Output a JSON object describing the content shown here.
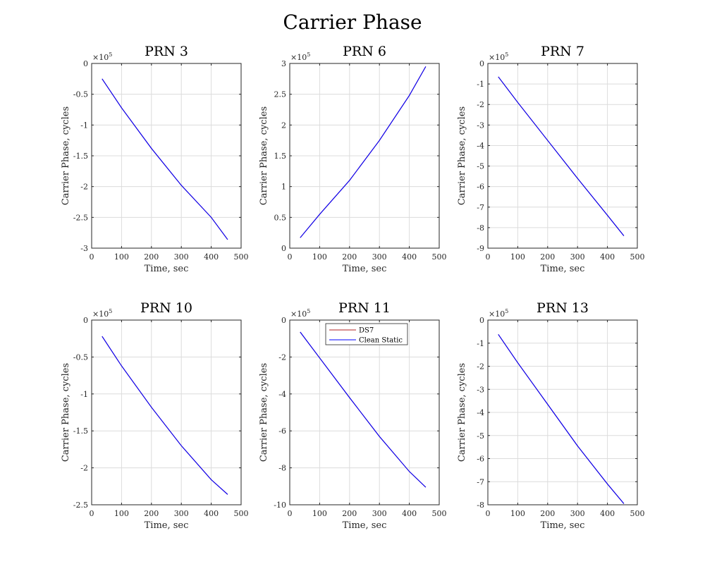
{
  "suptitle": "Carrier Phase",
  "colors": {
    "DS7": "#b22222",
    "Clean Static": "#0000ff",
    "grid": "#dcdcdc",
    "axis": "#262626"
  },
  "chart_data": [
    {
      "type": "line",
      "title": "PRN 3",
      "xlabel": "Time, sec",
      "ylabel": "Carrier Phase, cycles",
      "xlim": [
        0,
        500
      ],
      "xticks": [
        0,
        100,
        200,
        300,
        400,
        500
      ],
      "ylim": [
        -3,
        0
      ],
      "yticks": [
        -3,
        -2.5,
        -2,
        -1.5,
        -1,
        -0.5,
        0
      ],
      "ytick_labels": [
        "-3",
        "-2.5",
        "-2",
        "-1.5",
        "-1",
        "-0.5",
        "0"
      ],
      "y_multiplier": "×10^5",
      "grid": true,
      "series": [
        {
          "name": "DS7",
          "color": "#b22222",
          "x": [
            35,
            100,
            200,
            300,
            400,
            455
          ],
          "y": [
            -0.25,
            -0.72,
            -1.38,
            -1.98,
            -2.5,
            -2.86
          ]
        },
        {
          "name": "Clean Static",
          "color": "#0000ff",
          "x": [
            35,
            100,
            200,
            300,
            400,
            455
          ],
          "y": [
            -0.25,
            -0.72,
            -1.38,
            -1.98,
            -2.5,
            -2.86
          ]
        }
      ]
    },
    {
      "type": "line",
      "title": "PRN 6",
      "xlabel": "Time, sec",
      "ylabel": "Carrier Phase, cycles",
      "xlim": [
        0,
        500
      ],
      "xticks": [
        0,
        100,
        200,
        300,
        400,
        500
      ],
      "ylim": [
        0,
        3
      ],
      "yticks": [
        0,
        0.5,
        1,
        1.5,
        2,
        2.5,
        3
      ],
      "ytick_labels": [
        "0",
        "0.5",
        "1",
        "1.5",
        "2",
        "2.5",
        "3"
      ],
      "y_multiplier": "×10^5",
      "grid": true,
      "series": [
        {
          "name": "DS7",
          "color": "#b22222",
          "x": [
            35,
            100,
            200,
            300,
            400,
            455
          ],
          "y": [
            0.17,
            0.55,
            1.1,
            1.75,
            2.48,
            2.95
          ]
        },
        {
          "name": "Clean Static",
          "color": "#0000ff",
          "x": [
            35,
            100,
            200,
            300,
            400,
            455
          ],
          "y": [
            0.17,
            0.55,
            1.1,
            1.75,
            2.48,
            2.95
          ]
        }
      ]
    },
    {
      "type": "line",
      "title": "PRN 7",
      "xlabel": "Time, sec",
      "ylabel": "Carrier Phase, cycles",
      "xlim": [
        0,
        500
      ],
      "xticks": [
        0,
        100,
        200,
        300,
        400,
        500
      ],
      "ylim": [
        -9,
        0
      ],
      "yticks": [
        -9,
        -8,
        -7,
        -6,
        -5,
        -4,
        -3,
        -2,
        -1,
        0
      ],
      "ytick_labels": [
        "-9",
        "-8",
        "-7",
        "-6",
        "-5",
        "-4",
        "-3",
        "-2",
        "-1",
        "0"
      ],
      "y_multiplier": "×10^5",
      "grid": true,
      "series": [
        {
          "name": "DS7",
          "color": "#b22222",
          "x": [
            35,
            100,
            200,
            300,
            400,
            455
          ],
          "y": [
            -0.65,
            -1.9,
            -3.75,
            -5.6,
            -7.4,
            -8.4
          ]
        },
        {
          "name": "Clean Static",
          "color": "#0000ff",
          "x": [
            35,
            100,
            200,
            300,
            400,
            455
          ],
          "y": [
            -0.65,
            -1.9,
            -3.75,
            -5.6,
            -7.4,
            -8.4
          ]
        }
      ]
    },
    {
      "type": "line",
      "title": "PRN 10",
      "xlabel": "Time, sec",
      "ylabel": "Carrier Phase, cycles",
      "xlim": [
        0,
        500
      ],
      "xticks": [
        0,
        100,
        200,
        300,
        400,
        500
      ],
      "ylim": [
        -2.5,
        0
      ],
      "yticks": [
        -2.5,
        -2,
        -1.5,
        -1,
        -0.5,
        0
      ],
      "ytick_labels": [
        "-2.5",
        "-2",
        "-1.5",
        "-1",
        "-0.5",
        "0"
      ],
      "y_multiplier": "×10^5",
      "grid": true,
      "series": [
        {
          "name": "DS7",
          "color": "#b22222",
          "x": [
            35,
            100,
            200,
            300,
            400,
            455
          ],
          "y": [
            -0.22,
            -0.62,
            -1.18,
            -1.7,
            -2.16,
            -2.36
          ]
        },
        {
          "name": "Clean Static",
          "color": "#0000ff",
          "x": [
            35,
            100,
            200,
            300,
            400,
            455
          ],
          "y": [
            -0.22,
            -0.62,
            -1.18,
            -1.7,
            -2.16,
            -2.36
          ]
        }
      ]
    },
    {
      "type": "line",
      "title": "PRN 11",
      "xlabel": "Time, sec",
      "ylabel": "Carrier Phase, cycles",
      "xlim": [
        0,
        500
      ],
      "xticks": [
        0,
        100,
        200,
        300,
        400,
        500
      ],
      "ylim": [
        -10,
        0
      ],
      "yticks": [
        -10,
        -8,
        -6,
        -4,
        -2,
        0
      ],
      "ytick_labels": [
        "-10",
        "-8",
        "-6",
        "-4",
        "-2",
        "0"
      ],
      "y_multiplier": "×10^5",
      "grid": true,
      "legend": {
        "entries": [
          "DS7",
          "Clean Static"
        ],
        "location": "top-left"
      },
      "series": [
        {
          "name": "DS7",
          "color": "#b22222",
          "x": [
            35,
            100,
            200,
            300,
            400,
            455
          ],
          "y": [
            -0.65,
            -2.05,
            -4.2,
            -6.3,
            -8.2,
            -9.05
          ]
        },
        {
          "name": "Clean Static",
          "color": "#0000ff",
          "x": [
            35,
            100,
            200,
            300,
            400,
            455
          ],
          "y": [
            -0.65,
            -2.05,
            -4.2,
            -6.3,
            -8.2,
            -9.05
          ]
        }
      ]
    },
    {
      "type": "line",
      "title": "PRN 13",
      "xlabel": "Time, sec",
      "ylabel": "Carrier Phase, cycles",
      "xlim": [
        0,
        500
      ],
      "xticks": [
        0,
        100,
        200,
        300,
        400,
        500
      ],
      "ylim": [
        -8,
        0
      ],
      "yticks": [
        -8,
        -7,
        -6,
        -5,
        -4,
        -3,
        -2,
        -1,
        0
      ],
      "ytick_labels": [
        "-8",
        "-7",
        "-6",
        "-5",
        "-4",
        "-3",
        "-2",
        "-1",
        "0"
      ],
      "y_multiplier": "×10^5",
      "grid": true,
      "series": [
        {
          "name": "DS7",
          "color": "#b22222",
          "x": [
            35,
            100,
            200,
            300,
            400,
            455
          ],
          "y": [
            -0.62,
            -1.85,
            -3.65,
            -5.45,
            -7.1,
            -7.95
          ]
        },
        {
          "name": "Clean Static",
          "color": "#0000ff",
          "x": [
            35,
            100,
            200,
            300,
            400,
            455
          ],
          "y": [
            -0.62,
            -1.85,
            -3.65,
            -5.45,
            -7.1,
            -7.95
          ]
        }
      ]
    }
  ]
}
